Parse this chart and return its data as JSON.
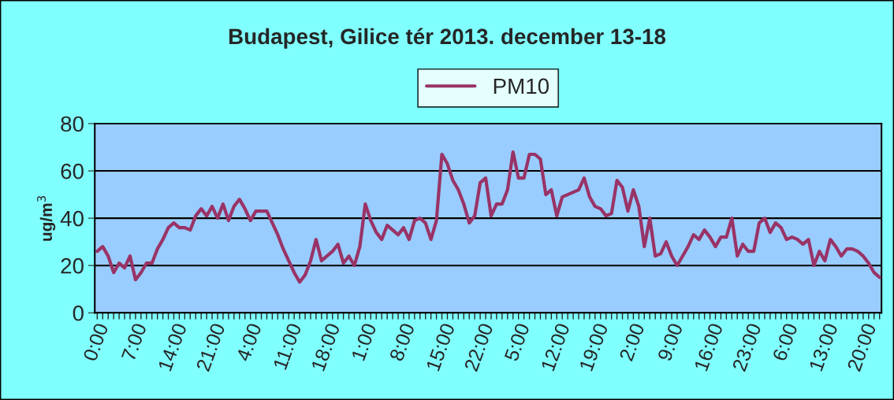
{
  "chart_data": {
    "type": "line",
    "title": "Budapest, Gilice tér 2013. december 13-18",
    "ylabel": "ug/m$^{3}$",
    "categories": [
      "0:00",
      null,
      null,
      null,
      null,
      null,
      null,
      "7:00",
      null,
      null,
      null,
      null,
      null,
      null,
      "14:00",
      null,
      null,
      null,
      null,
      null,
      null,
      "21:00",
      null,
      null,
      null,
      null,
      null,
      null,
      "4:00",
      null,
      null,
      null,
      null,
      null,
      null,
      "11:00",
      null,
      null,
      null,
      null,
      null,
      null,
      "18:00",
      null,
      null,
      null,
      null,
      null,
      null,
      "1:00",
      null,
      null,
      null,
      null,
      null,
      null,
      "8:00",
      null,
      null,
      null,
      null,
      null,
      null,
      "15:00",
      null,
      null,
      null,
      null,
      null,
      null,
      "22:00",
      null,
      null,
      null,
      null,
      null,
      null,
      "5:00",
      null,
      null,
      null,
      null,
      null,
      null,
      "12:00",
      null,
      null,
      null,
      null,
      null,
      null,
      "19:00",
      null,
      null,
      null,
      null,
      null,
      null,
      "2:00",
      null,
      null,
      null,
      null,
      null,
      null,
      "9:00",
      null,
      null,
      null,
      null,
      null,
      null,
      "16:00",
      null,
      null,
      null,
      null,
      null,
      null,
      "23:00",
      null,
      null,
      null,
      null,
      null,
      null,
      "6:00",
      null,
      null,
      null,
      null,
      null,
      null,
      "13:00",
      null,
      null,
      null,
      null,
      null,
      null,
      "20:00",
      null,
      null,
      null
    ],
    "series": [
      {
        "name": "PM10",
        "color": "#993366",
        "values": [
          26,
          28,
          24,
          17,
          21,
          19,
          24,
          14,
          17,
          21,
          21,
          27,
          31,
          36,
          38,
          36,
          36,
          35,
          41,
          44,
          41,
          45,
          40,
          46,
          39,
          45,
          48,
          44,
          39,
          43,
          43,
          43,
          38,
          33,
          27,
          22,
          17,
          13,
          16,
          22,
          31,
          22,
          24,
          26,
          29,
          21,
          24,
          20,
          28,
          46,
          39,
          34,
          31,
          37,
          35,
          33,
          36,
          31,
          39,
          40,
          38,
          31,
          39,
          67,
          63,
          56,
          52,
          46,
          38,
          41,
          55,
          57,
          41,
          46,
          46,
          52,
          68,
          57,
          57,
          67,
          67,
          65,
          50,
          52,
          41,
          49,
          50,
          51,
          52,
          57,
          49,
          45,
          44,
          41,
          42,
          56,
          53,
          43,
          52,
          45,
          28,
          40,
          24,
          25,
          30,
          24,
          20,
          24,
          28,
          33,
          31,
          35,
          32,
          28,
          32,
          32,
          40,
          24,
          29,
          26,
          26,
          38,
          40,
          34,
          38,
          36,
          31,
          32,
          31,
          29,
          31,
          20,
          26,
          22,
          31,
          28,
          24,
          27,
          27,
          26,
          24,
          21,
          17,
          15
        ]
      }
    ],
    "ylim": [
      0,
      80
    ],
    "yticks": [
      0,
      20,
      40,
      60,
      80
    ],
    "grid": "y",
    "legend": "top",
    "marker": "none",
    "line_style": "solid"
  }
}
